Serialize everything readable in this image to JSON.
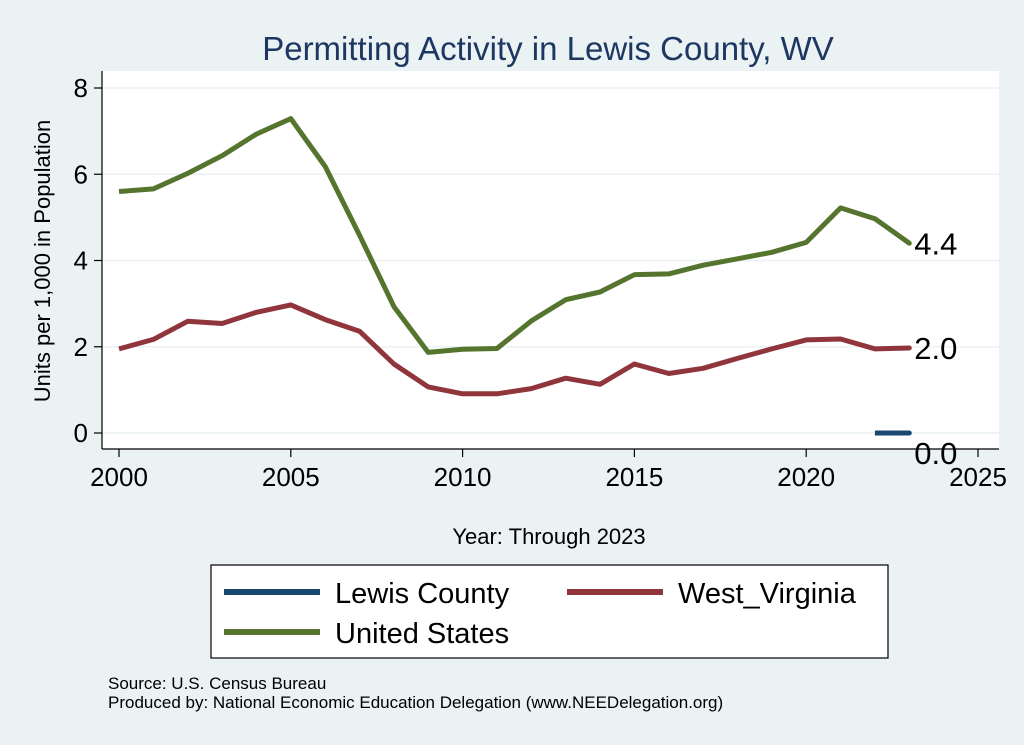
{
  "chart_data": {
    "type": "line",
    "title": "Permitting Activity in Lewis County, WV",
    "xlabel": "Year: Through 2023",
    "ylabel": "Units per 1,000 in Population",
    "xlim": [
      2000,
      2025
    ],
    "ylim": [
      0,
      8
    ],
    "xticks": [
      2000,
      2005,
      2010,
      2015,
      2020,
      2025
    ],
    "yticks": [
      0,
      2,
      4,
      6,
      8
    ],
    "grid": true,
    "legend_position": "bottom",
    "series": [
      {
        "name": "Lewis County",
        "color": "#1a476f",
        "x": [
          2022,
          2023
        ],
        "values": [
          0.0,
          0.0
        ],
        "end_label": "0.0"
      },
      {
        "name": "West_Virginia",
        "color": "#90353b",
        "x": [
          2000,
          2001,
          2002,
          2003,
          2004,
          2005,
          2006,
          2007,
          2008,
          2009,
          2010,
          2011,
          2012,
          2013,
          2014,
          2015,
          2016,
          2017,
          2018,
          2019,
          2020,
          2021,
          2022,
          2023
        ],
        "values": [
          1.95,
          2.17,
          2.59,
          2.54,
          2.8,
          2.97,
          2.63,
          2.36,
          1.6,
          1.07,
          0.91,
          0.91,
          1.03,
          1.27,
          1.13,
          1.6,
          1.38,
          1.5,
          1.73,
          1.95,
          2.16,
          2.18,
          1.95,
          1.97
        ],
        "end_label": "2.0"
      },
      {
        "name": "United States",
        "color": "#55752f",
        "x": [
          2000,
          2001,
          2002,
          2003,
          2004,
          2005,
          2006,
          2007,
          2008,
          2009,
          2010,
          2011,
          2012,
          2013,
          2014,
          2015,
          2016,
          2017,
          2018,
          2019,
          2020,
          2021,
          2022,
          2023
        ],
        "values": [
          5.6,
          5.66,
          6.02,
          6.43,
          6.93,
          7.29,
          6.18,
          4.59,
          2.93,
          1.87,
          1.94,
          1.96,
          2.6,
          3.09,
          3.27,
          3.67,
          3.69,
          3.89,
          4.04,
          4.19,
          4.42,
          5.22,
          4.97,
          4.4
        ],
        "end_label": "4.4"
      }
    ],
    "notes": [
      "Source: U.S. Census Bureau",
      "Produced by: National Economic Education Delegation (www.NEEDelegation.org)"
    ]
  }
}
